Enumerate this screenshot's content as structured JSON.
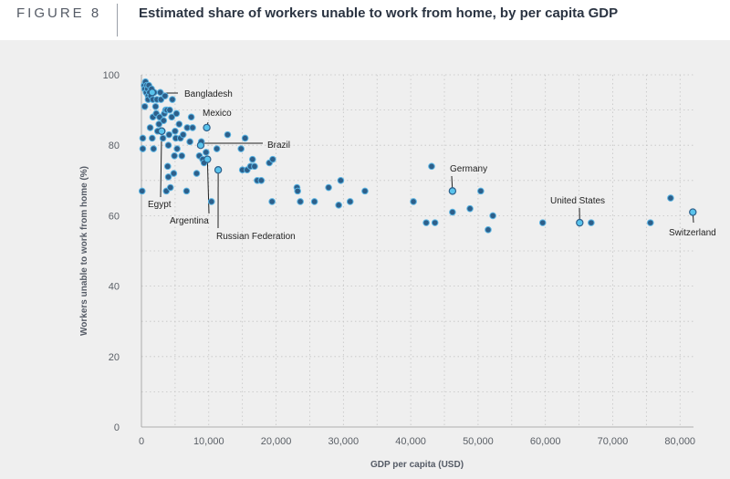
{
  "header": {
    "figure_label": "FIGURE 8",
    "title": "Estimated share of workers unable to work from home, by per capita GDP"
  },
  "colors": {
    "background": "#efefef",
    "point_fill": "#2d5f8a",
    "point_stroke": "#5ab4e3",
    "highlight_fill": "#59c3ec",
    "grid": "#c4c4c4",
    "annotation_line": "#222222"
  },
  "chart_data": {
    "type": "scatter",
    "title": "Estimated share of workers unable to work from home, by per capita GDP",
    "xlabel": "GDP per capita (USD)",
    "ylabel": "Workers unable to work from home (%)",
    "xlim": [
      0,
      82000
    ],
    "ylim": [
      0,
      100
    ],
    "xticks": [
      0,
      10000,
      20000,
      30000,
      40000,
      50000,
      60000,
      70000,
      80000
    ],
    "xtick_labels": [
      "0",
      "10,000",
      "20,000",
      "30,000",
      "40,000",
      "50,000",
      "60,000",
      "70,000",
      "80,000"
    ],
    "yticks": [
      0,
      20,
      40,
      60,
      80,
      100
    ],
    "ytick_labels": [
      "0",
      "20",
      "40",
      "60",
      "80",
      "100"
    ],
    "grid": "dotted horizontal and vertical",
    "points": [
      [
        100,
        67
      ],
      [
        200,
        79
      ],
      [
        200,
        82
      ],
      [
        400,
        97
      ],
      [
        500,
        96
      ],
      [
        500,
        91
      ],
      [
        600,
        98
      ],
      [
        700,
        95
      ],
      [
        800,
        97
      ],
      [
        900,
        96
      ],
      [
        1000,
        94
      ],
      [
        1000,
        93
      ],
      [
        1100,
        97
      ],
      [
        1200,
        95
      ],
      [
        1300,
        85
      ],
      [
        1400,
        94
      ],
      [
        1500,
        96
      ],
      [
        1600,
        82
      ],
      [
        1700,
        93
      ],
      [
        1700,
        88
      ],
      [
        1800,
        79
      ],
      [
        1900,
        95
      ],
      [
        2100,
        91
      ],
      [
        2200,
        89
      ],
      [
        2300,
        93
      ],
      [
        2400,
        84
      ],
      [
        2600,
        86
      ],
      [
        2700,
        88
      ],
      [
        2800,
        95
      ],
      [
        2900,
        93
      ],
      [
        3100,
        84
      ],
      [
        3200,
        82
      ],
      [
        3300,
        87
      ],
      [
        3400,
        89
      ],
      [
        3500,
        94
      ],
      [
        3600,
        90
      ],
      [
        3700,
        67
      ],
      [
        3800,
        90
      ],
      [
        3900,
        74
      ],
      [
        4000,
        71
      ],
      [
        4000,
        80
      ],
      [
        4100,
        83
      ],
      [
        4200,
        90
      ],
      [
        4300,
        68
      ],
      [
        4500,
        88
      ],
      [
        4600,
        93
      ],
      [
        4800,
        72
      ],
      [
        4900,
        77
      ],
      [
        5000,
        84
      ],
      [
        5100,
        82
      ],
      [
        5200,
        89
      ],
      [
        5300,
        79
      ],
      [
        5600,
        86
      ],
      [
        5800,
        82
      ],
      [
        6000,
        77
      ],
      [
        6200,
        83
      ],
      [
        6700,
        67
      ],
      [
        6800,
        85
      ],
      [
        7200,
        81
      ],
      [
        7400,
        88
      ],
      [
        7600,
        85
      ],
      [
        8200,
        72
      ],
      [
        8600,
        77
      ],
      [
        8900,
        81
      ],
      [
        9100,
        76
      ],
      [
        9300,
        75
      ],
      [
        9600,
        78
      ],
      [
        10400,
        64
      ],
      [
        11200,
        79
      ],
      [
        12800,
        83
      ],
      [
        14800,
        79
      ],
      [
        15000,
        73
      ],
      [
        15400,
        82
      ],
      [
        15700,
        73
      ],
      [
        16200,
        74
      ],
      [
        16500,
        76
      ],
      [
        16800,
        74
      ],
      [
        17200,
        70
      ],
      [
        17800,
        70
      ],
      [
        19000,
        75
      ],
      [
        19400,
        64
      ],
      [
        19500,
        76
      ],
      [
        23100,
        68
      ],
      [
        23200,
        67
      ],
      [
        23600,
        64
      ],
      [
        25700,
        64
      ],
      [
        27800,
        68
      ],
      [
        29300,
        63
      ],
      [
        29600,
        70
      ],
      [
        31000,
        64
      ],
      [
        33200,
        67
      ],
      [
        40400,
        64
      ],
      [
        42300,
        58
      ],
      [
        43100,
        74
      ],
      [
        43600,
        58
      ],
      [
        46200,
        61
      ],
      [
        48800,
        62
      ],
      [
        50400,
        67
      ],
      [
        51500,
        56
      ],
      [
        52200,
        60
      ],
      [
        59600,
        58
      ],
      [
        66800,
        58
      ],
      [
        75600,
        58
      ],
      [
        78600,
        65
      ]
    ],
    "highlighted_points": [
      {
        "name": "Bangladesh",
        "x": 1600,
        "y": 95
      },
      {
        "name": "Egypt",
        "x": 3000,
        "y": 84
      },
      {
        "name": "Argentina",
        "x": 9800,
        "y": 76
      },
      {
        "name": "Mexico",
        "x": 9700,
        "y": 85
      },
      {
        "name": "Brazil",
        "x": 8800,
        "y": 80
      },
      {
        "name": "Russian Federation",
        "x": 11400,
        "y": 73
      },
      {
        "name": "Germany",
        "x": 46200,
        "y": 67
      },
      {
        "name": "United States",
        "x": 65100,
        "y": 58
      },
      {
        "name": "Switzerland",
        "x": 81900,
        "y": 61
      }
    ]
  }
}
